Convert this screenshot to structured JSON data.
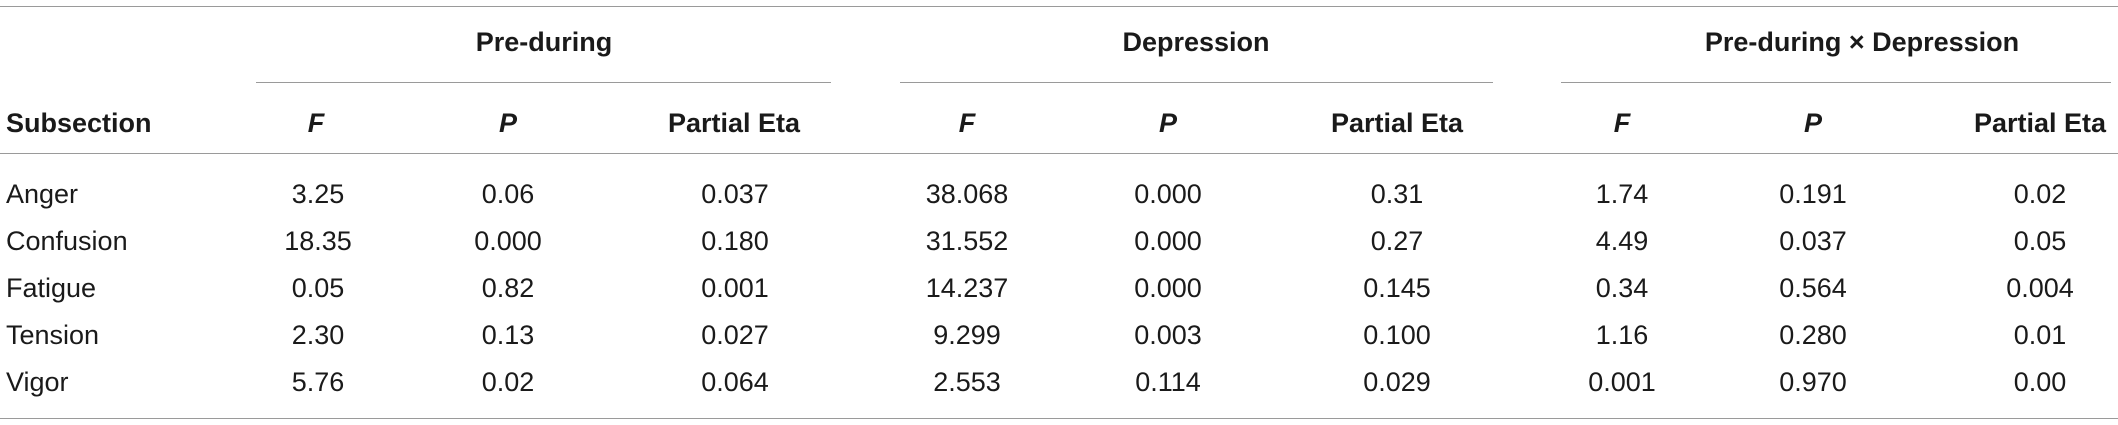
{
  "groups": [
    {
      "title": "Pre-during"
    },
    {
      "title": "Depression"
    },
    {
      "title": "Pre-during × Depression"
    }
  ],
  "columns": {
    "row_header": "Subsection",
    "sub": [
      "F",
      "P",
      "Partial Eta"
    ]
  },
  "rows": [
    {
      "label": "Anger",
      "values": [
        "3.25",
        "0.06",
        "0.037",
        "38.068",
        "0.000",
        "0.31",
        "1.74",
        "0.191",
        "0.02"
      ]
    },
    {
      "label": "Confusion",
      "values": [
        "18.35",
        "0.000",
        "0.180",
        "31.552",
        "0.000",
        "0.27",
        "4.49",
        "0.037",
        "0.05"
      ]
    },
    {
      "label": "Fatigue",
      "values": [
        "0.05",
        "0.82",
        "0.001",
        "14.237",
        "0.000",
        "0.145",
        "0.34",
        "0.564",
        "0.004"
      ]
    },
    {
      "label": "Tension",
      "values": [
        "2.30",
        "0.13",
        "0.027",
        "9.299",
        "0.003",
        "0.100",
        "1.16",
        "0.280",
        "0.01"
      ]
    },
    {
      "label": "Vigor",
      "values": [
        "5.76",
        "0.02",
        "0.064",
        "2.553",
        "0.114",
        "0.029",
        "0.001",
        "0.970",
        "0.00"
      ]
    }
  ]
}
